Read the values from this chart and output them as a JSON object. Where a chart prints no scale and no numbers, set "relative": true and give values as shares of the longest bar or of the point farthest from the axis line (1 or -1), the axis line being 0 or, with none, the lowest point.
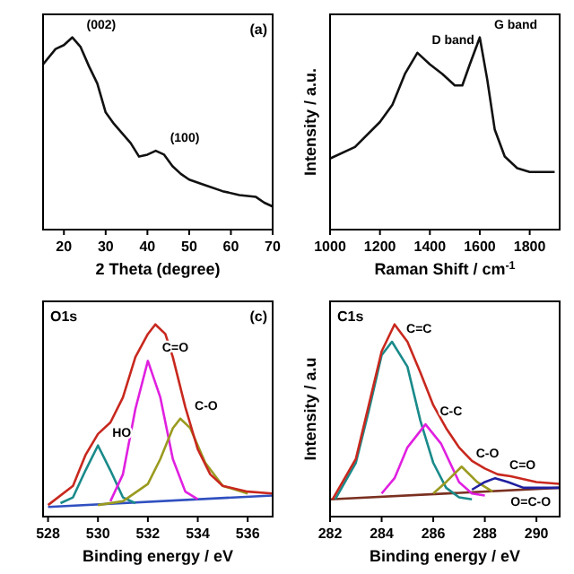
{
  "chart_data": [
    {
      "type": "line",
      "xlabel": "2 Theta (degree)",
      "relative": true,
      "xlim": [
        15,
        70
      ],
      "xticks": [
        20,
        30,
        40,
        50,
        60,
        70
      ],
      "annotations": [
        {
          "text": "(002)",
          "x": 22,
          "y": 1.0
        },
        {
          "text": "(100)",
          "x": 42,
          "y": 0.41
        },
        "(a)"
      ],
      "series": [
        {
          "color": "#111111",
          "x": [
            15,
            18,
            20,
            22,
            24,
            26,
            28,
            30,
            32,
            34,
            36,
            38,
            40,
            42,
            44,
            46,
            48,
            50,
            54,
            58,
            62,
            66,
            68,
            70
          ],
          "values": [
            0.86,
            0.94,
            0.96,
            1.0,
            0.95,
            0.85,
            0.76,
            0.61,
            0.55,
            0.5,
            0.45,
            0.38,
            0.39,
            0.41,
            0.39,
            0.33,
            0.29,
            0.26,
            0.23,
            0.2,
            0.18,
            0.17,
            0.14,
            0.12
          ]
        }
      ]
    },
    {
      "type": "line",
      "xlabel": "Raman Shift / cm$^{-1}$",
      "ylabel": "Intensity / a.u.",
      "relative": true,
      "xlim": [
        1000,
        1920
      ],
      "xticks": [
        1000,
        1200,
        1400,
        1600,
        1800
      ],
      "annotations": [
        {
          "text": "D band",
          "x": 1350,
          "y": 0.92
        },
        {
          "text": "G band",
          "x": 1600,
          "y": 1.0
        }
      ],
      "series": [
        {
          "color": "#111111",
          "x": [
            1000,
            1100,
            1200,
            1250,
            1300,
            1350,
            1400,
            1450,
            1500,
            1530,
            1560,
            1600,
            1630,
            1660,
            1700,
            1750,
            1800,
            1850,
            1900
          ],
          "values": [
            0.37,
            0.43,
            0.56,
            0.65,
            0.81,
            0.92,
            0.86,
            0.81,
            0.75,
            0.75,
            0.86,
            1.0,
            0.78,
            0.52,
            0.38,
            0.32,
            0.3,
            0.3,
            0.3
          ]
        }
      ]
    },
    {
      "type": "line",
      "title": "O1s",
      "xlabel": "Binding energy / eV",
      "relative": true,
      "xlim": [
        527.8,
        537
      ],
      "xticks": [
        528,
        530,
        532,
        534,
        536
      ],
      "annotations": [
        {
          "text": "HO",
          "x": 530,
          "y": 0.37
        },
        {
          "text": "C=O",
          "x": 532,
          "y": 0.81
        },
        {
          "text": "C-O",
          "x": 533.3,
          "y": 0.51
        },
        "(c)"
      ],
      "series": [
        {
          "color": "#3050c0",
          "x": [
            528,
            537
          ],
          "values": [
            0.05,
            0.11
          ]
        },
        {
          "color": "#1a8a8a",
          "x": [
            528.5,
            529,
            529.5,
            530,
            530.5,
            531,
            531.5
          ],
          "values": [
            0.07,
            0.1,
            0.24,
            0.37,
            0.24,
            0.1,
            0.07
          ]
        },
        {
          "color": "#e020e0",
          "x": [
            530.5,
            531,
            531.5,
            532,
            532.5,
            533,
            533.5,
            534
          ],
          "values": [
            0.08,
            0.22,
            0.56,
            0.81,
            0.62,
            0.3,
            0.13,
            0.09
          ]
        },
        {
          "color": "#9a9a20",
          "x": [
            530,
            531,
            532,
            532.5,
            533,
            533.3,
            533.7,
            534.3,
            535,
            536
          ],
          "values": [
            0.06,
            0.08,
            0.17,
            0.3,
            0.46,
            0.51,
            0.46,
            0.28,
            0.16,
            0.12
          ]
        },
        {
          "color": "#c8281e",
          "x": [
            528,
            529,
            529.5,
            530,
            530.5,
            531,
            531.5,
            532,
            532.3,
            532.7,
            533,
            533.5,
            534,
            534.5,
            535,
            536,
            537
          ],
          "values": [
            0.06,
            0.16,
            0.32,
            0.43,
            0.49,
            0.62,
            0.83,
            0.95,
            1.0,
            0.95,
            0.83,
            0.57,
            0.35,
            0.22,
            0.16,
            0.13,
            0.12
          ]
        }
      ]
    },
    {
      "type": "line",
      "title": "C1s",
      "xlabel": "Binding energy / eV",
      "ylabel": "Intensity / a.u",
      "relative": true,
      "xlim": [
        282,
        290.9
      ],
      "xticks": [
        282,
        284,
        286,
        288,
        290
      ],
      "annotations": [
        {
          "text": "C=C",
          "x": 284.4,
          "y": 0.91
        },
        {
          "text": "C-C",
          "x": 285.7,
          "y": 0.48
        },
        {
          "text": "C-O",
          "x": 287.1,
          "y": 0.26
        },
        {
          "text": "C=O",
          "x": 288.4,
          "y": 0.2
        },
        {
          "text": "O=C-O",
          "x": 290,
          "y": 0.16
        }
      ],
      "series": [
        {
          "color": "#7a3020",
          "x": [
            282,
            290.9
          ],
          "values": [
            0.09,
            0.15
          ]
        },
        {
          "color": "#1a8a8a",
          "x": [
            282.2,
            283,
            283.5,
            284,
            284.4,
            285,
            285.5,
            286,
            286.5,
            287,
            287.5
          ],
          "values": [
            0.09,
            0.28,
            0.55,
            0.84,
            0.91,
            0.78,
            0.5,
            0.28,
            0.15,
            0.1,
            0.09
          ]
        },
        {
          "color": "#e020e0",
          "x": [
            284,
            284.5,
            285,
            285.7,
            286.3,
            287,
            287.5,
            288
          ],
          "values": [
            0.12,
            0.2,
            0.36,
            0.48,
            0.38,
            0.18,
            0.12,
            0.11
          ]
        },
        {
          "color": "#9a9a20",
          "x": [
            286,
            286.5,
            287.1,
            287.7,
            288.3
          ],
          "values": [
            0.12,
            0.18,
            0.26,
            0.18,
            0.13
          ]
        },
        {
          "color": "#2020a0",
          "x": [
            287.5,
            288,
            288.4,
            288.9,
            289.5,
            290.9
          ],
          "values": [
            0.14,
            0.18,
            0.2,
            0.18,
            0.15,
            0.15
          ]
        },
        {
          "color": "#c8281e",
          "x": [
            282.1,
            283,
            283.5,
            284,
            284.5,
            285,
            285.5,
            286,
            286.5,
            287,
            287.5,
            288,
            288.5,
            289,
            290,
            290.9
          ],
          "values": [
            0.09,
            0.3,
            0.58,
            0.86,
            1.0,
            0.91,
            0.75,
            0.58,
            0.46,
            0.36,
            0.29,
            0.25,
            0.22,
            0.21,
            0.18,
            0.17
          ]
        }
      ]
    }
  ]
}
